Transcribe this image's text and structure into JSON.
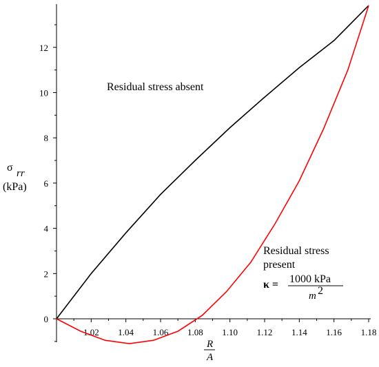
{
  "chart_data": {
    "type": "line",
    "x_range": [
      1.0,
      1.18
    ],
    "y_range": [
      -1.0,
      13.9
    ],
    "x_ticks": [
      1.02,
      1.04,
      1.06,
      1.08,
      1.1,
      1.12,
      1.14,
      1.16,
      1.18
    ],
    "x_tick_labels": [
      "1.02",
      "1.04",
      "1.06",
      "1.08",
      "1.10",
      "1.12",
      "1.14",
      "1.16",
      "1.18"
    ],
    "y_ticks": [
      0,
      2,
      4,
      6,
      8,
      10,
      12
    ],
    "y_tick_labels": [
      "0",
      "2",
      "4",
      "6",
      "8",
      "10",
      "12"
    ],
    "y_axis_label": {
      "symbol": "σ",
      "subscript": "rr",
      "unit": "(kPa)"
    },
    "x_axis_label": {
      "numerator": "R",
      "denominator": "A"
    },
    "series": [
      {
        "color": "#000000",
        "points": [
          [
            1.0,
            0.0
          ],
          [
            1.02,
            2.0
          ],
          [
            1.04,
            3.8
          ],
          [
            1.06,
            5.5
          ],
          [
            1.08,
            7.0
          ],
          [
            1.1,
            8.45
          ],
          [
            1.12,
            9.8
          ],
          [
            1.14,
            11.1
          ],
          [
            1.16,
            12.3
          ],
          [
            1.18,
            13.85
          ]
        ]
      },
      {
        "color": "#ff0000",
        "points": [
          [
            1.0,
            0.0
          ],
          [
            1.014,
            -0.55
          ],
          [
            1.028,
            -0.95
          ],
          [
            1.042,
            -1.1
          ],
          [
            1.056,
            -0.95
          ],
          [
            1.07,
            -0.55
          ],
          [
            1.084,
            0.15
          ],
          [
            1.098,
            1.2
          ],
          [
            1.112,
            2.5
          ],
          [
            1.126,
            4.2
          ],
          [
            1.14,
            6.1
          ],
          [
            1.154,
            8.4
          ],
          [
            1.168,
            11.0
          ],
          [
            1.18,
            13.85
          ]
        ]
      }
    ],
    "annotations": {
      "absent": "Residual stress absent",
      "present_line1": "Residual stress",
      "present_line2": "present",
      "kappa": "κ =",
      "kappa_numerator": "1000 kPa",
      "kappa_denominator_base": "m",
      "kappa_denominator_exp": "2"
    }
  }
}
